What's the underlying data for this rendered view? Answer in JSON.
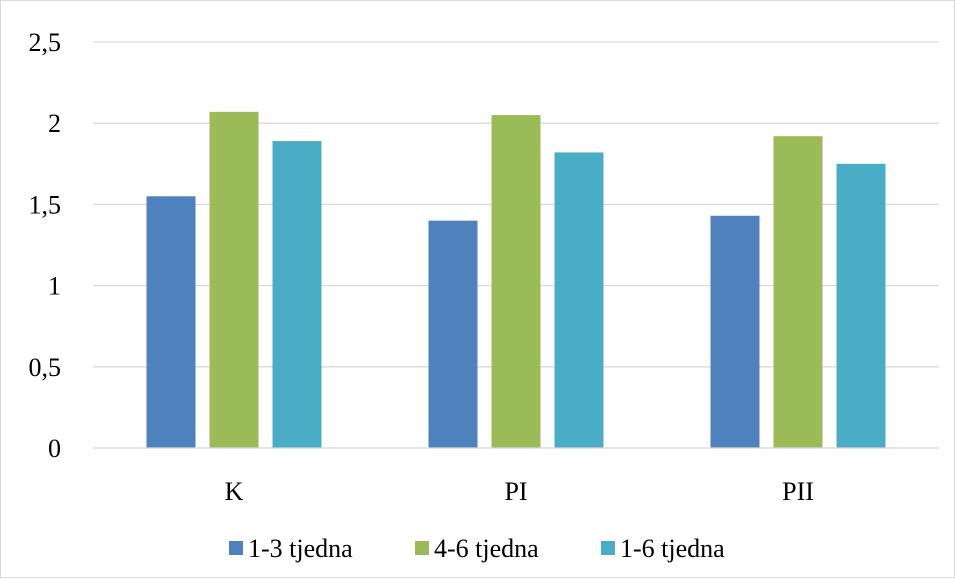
{
  "chart_data": {
    "type": "bar",
    "categories": [
      "K",
      "PI",
      "PII"
    ],
    "series": [
      {
        "name": "1-3 tjedna",
        "values": [
          1.55,
          1.4,
          1.43
        ],
        "color": "#4f81bd"
      },
      {
        "name": "4-6 tjedna",
        "values": [
          2.07,
          2.05,
          1.92
        ],
        "color": "#9bbb59"
      },
      {
        "name": "1-6 tjedna",
        "values": [
          1.89,
          1.82,
          1.75
        ],
        "color": "#4bacc6"
      }
    ],
    "ylim": [
      0,
      2.5
    ],
    "yticks": [
      "0",
      "0,5",
      "1",
      "1,5",
      "2",
      "2,5"
    ],
    "title": "",
    "xlabel": "",
    "ylabel": "",
    "grid": true,
    "gridline_color": "#d9d9d9",
    "legend_position": "bottom"
  }
}
